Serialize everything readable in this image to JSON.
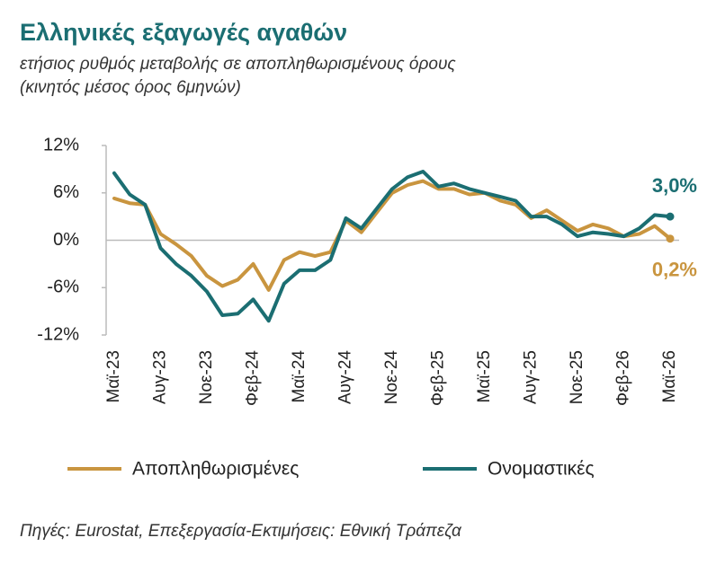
{
  "chart_data": {
    "type": "line",
    "title": "Ελληνικές εξαγωγές αγαθών",
    "subtitle": "ετήσιος ρυθμός μεταβολής σε αποπληθωρισμένους όρους",
    "subtitle2": "(κινητός μέσος όρος 6μηνών)",
    "source": "Πηγές: Eurostat, Επεξεργασία-Εκτιμήσεις: Εθνική Τράπεζα",
    "categories": [
      "Μαϊ-23",
      null,
      null,
      "Αυγ-23",
      null,
      null,
      "Νοε-23",
      null,
      null,
      "Φεβ-24",
      null,
      null,
      "Μαϊ-24",
      null,
      null,
      "Αυγ-24",
      null,
      null,
      "Νοε-24",
      null,
      null,
      "Φεβ-25",
      null,
      null,
      "Μαϊ-25",
      null,
      null,
      "Αυγ-25",
      null,
      null,
      "Νοε-25",
      null,
      null,
      "Φεβ-26",
      null,
      null,
      "Μαϊ-26"
    ],
    "series": [
      {
        "name": "Αποπληθωρισμένες",
        "color": "#c9953f",
        "values": [
          5.3,
          4.7,
          4.5,
          0.8,
          -0.5,
          -2,
          -4.5,
          -5.8,
          -5,
          -3,
          -6.3,
          -2.5,
          -1.5,
          -2,
          -1.5,
          2.5,
          1,
          3.5,
          6,
          7,
          7.5,
          6.5,
          6.5,
          5.8,
          6,
          5,
          4.5,
          2.8,
          3.8,
          2.5,
          1.2,
          2,
          1.5,
          0.5,
          0.8,
          1.8,
          0.2
        ],
        "value_labels": [
          null,
          null,
          null,
          null,
          null,
          null,
          null,
          null,
          null,
          null,
          null,
          null,
          null,
          null,
          null,
          null,
          null,
          null,
          null,
          null,
          null,
          null,
          null,
          null,
          null,
          null,
          null,
          null,
          null,
          null,
          null,
          null,
          null,
          null,
          null,
          null,
          "0,2%"
        ]
      },
      {
        "name": "Ονομαστικές",
        "color": "#1b6e72",
        "values": [
          8.5,
          5.8,
          4.5,
          -1,
          -3,
          -4.5,
          -6.5,
          -9.5,
          -9.3,
          -7.5,
          -10.2,
          -5.5,
          -3.8,
          -3.8,
          -2.5,
          2.8,
          1.5,
          4,
          6.5,
          8,
          8.7,
          6.8,
          7.2,
          6.5,
          6,
          5.5,
          5,
          3,
          3,
          2,
          0.5,
          1,
          0.8,
          0.5,
          1.5,
          3.2,
          3.0
        ],
        "value_labels": [
          null,
          null,
          null,
          null,
          null,
          null,
          null,
          null,
          null,
          null,
          null,
          null,
          null,
          null,
          null,
          null,
          null,
          null,
          null,
          null,
          null,
          null,
          null,
          null,
          null,
          null,
          null,
          null,
          null,
          null,
          null,
          null,
          null,
          null,
          null,
          null,
          "3,0%"
        ]
      }
    ],
    "ylim": [
      -12,
      12
    ],
    "yticks": [
      {
        "value": -12,
        "label": "-12%"
      },
      {
        "value": -6,
        "label": "-6%"
      },
      {
        "value": 0,
        "label": "0%"
      },
      {
        "value": 6,
        "label": "6%"
      },
      {
        "value": 12,
        "label": "12%"
      }
    ],
    "legend": "bottom"
  }
}
